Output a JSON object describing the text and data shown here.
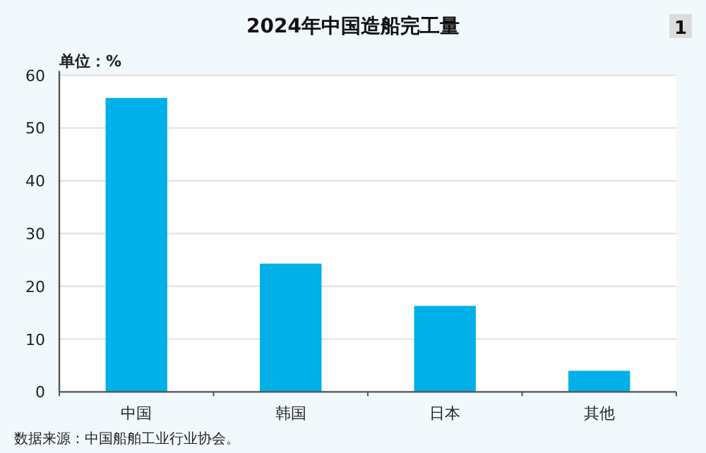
{
  "chart_data": {
    "type": "bar",
    "title": "2024年中国造船完工量",
    "ylabel": "单位：%",
    "categories": [
      "中国",
      "韩国",
      "日本",
      "其他"
    ],
    "values": [
      55.7,
      24.3,
      16.3,
      4.0
    ],
    "color": "#00b0e8",
    "ylim": [
      0,
      60
    ],
    "yticks": [
      0,
      10,
      20,
      30,
      40,
      50,
      60
    ],
    "grid": "y",
    "annotations": [
      "1",
      "数据来源：中国船舶工业行业协会。"
    ]
  }
}
